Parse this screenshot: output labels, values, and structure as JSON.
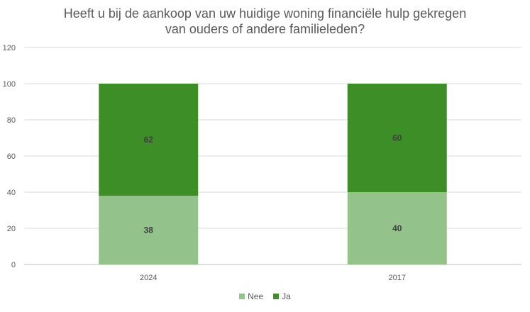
{
  "chart_data": {
    "type": "bar",
    "stacked": true,
    "title_lines": [
      "Heeft u bij de aankoop van uw huidige woning financiële hulp gekregen",
      "van ouders of andere familieleden?"
    ],
    "categories": [
      "2024",
      "2017"
    ],
    "series": [
      {
        "name": "Nee",
        "values": [
          38,
          40
        ],
        "color": "#93c38a"
      },
      {
        "name": "Ja",
        "values": [
          62,
          60
        ],
        "color": "#3e8e28"
      }
    ],
    "ylim": [
      0,
      120
    ],
    "yticks": [
      "0",
      "20",
      "40",
      "60",
      "80",
      "100",
      "120"
    ],
    "grid": true,
    "legend": "bottom"
  }
}
